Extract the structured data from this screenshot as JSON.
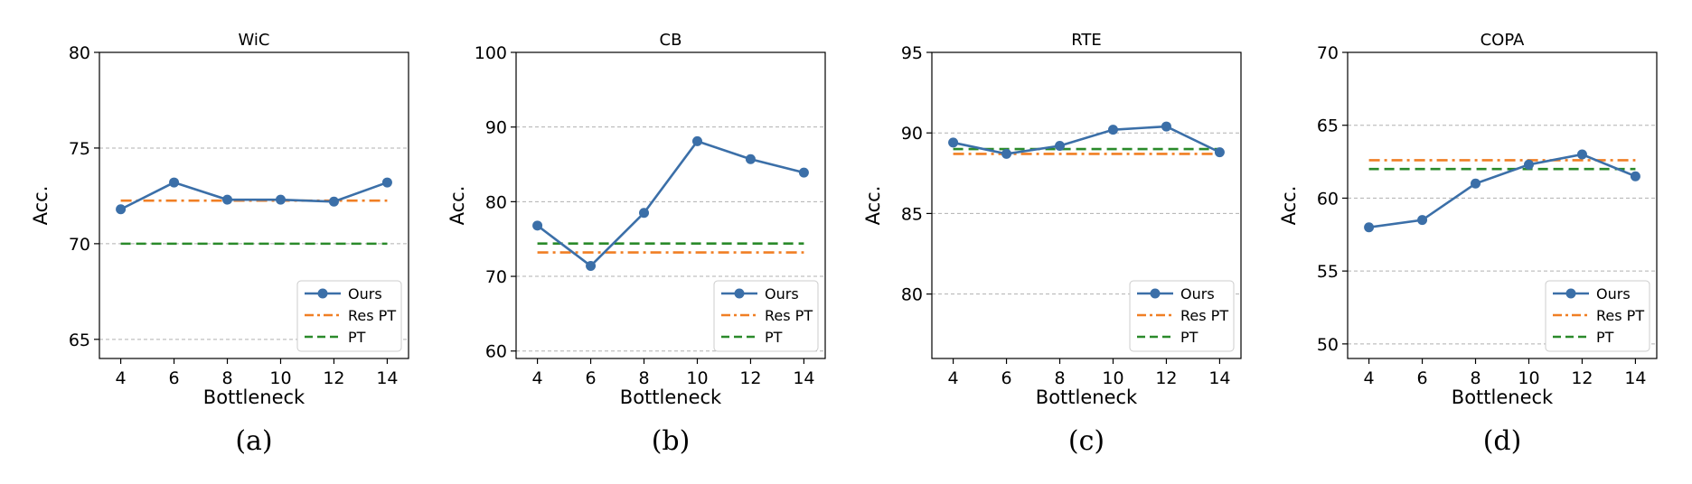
{
  "colors": {
    "ours": "#3b6fa8",
    "res_pt": "#f07f24",
    "pt": "#2a8a2a",
    "grid": "#b0b0b0",
    "axis": "#000000"
  },
  "chart_data": [
    {
      "type": "line",
      "title": "WiC",
      "xlabel": "Bottleneck",
      "ylabel": "Acc.",
      "caption": "(a)",
      "x": [
        4,
        6,
        8,
        10,
        12,
        14
      ],
      "xlim": [
        3.2,
        14.8
      ],
      "ylim": [
        64,
        80
      ],
      "yticks": [
        65,
        70,
        75,
        80
      ],
      "xticks": [
        4,
        6,
        8,
        10,
        12,
        14
      ],
      "grid": "y",
      "legend_position": "bottom-right",
      "series": [
        {
          "name": "Ours",
          "style": "solid-marker",
          "values": [
            71.8,
            73.2,
            72.3,
            72.3,
            72.2,
            73.2
          ]
        },
        {
          "name": "Res PT",
          "style": "dashdot",
          "values": [
            72.25,
            72.25,
            72.25,
            72.25,
            72.25,
            72.25
          ]
        },
        {
          "name": "PT",
          "style": "dashed",
          "values": [
            70.0,
            70.0,
            70.0,
            70.0,
            70.0,
            70.0
          ]
        }
      ]
    },
    {
      "type": "line",
      "title": "CB",
      "xlabel": "Bottleneck",
      "ylabel": "Acc.",
      "caption": "(b)",
      "x": [
        4,
        6,
        8,
        10,
        12,
        14
      ],
      "xlim": [
        3.2,
        14.8
      ],
      "ylim": [
        59,
        100
      ],
      "yticks": [
        60,
        70,
        80,
        90,
        100
      ],
      "xticks": [
        4,
        6,
        8,
        10,
        12,
        14
      ],
      "grid": "y",
      "legend_position": "bottom-right",
      "series": [
        {
          "name": "Ours",
          "style": "solid-marker",
          "values": [
            76.8,
            71.4,
            78.5,
            88.1,
            85.7,
            83.9
          ]
        },
        {
          "name": "Res PT",
          "style": "dashdot",
          "values": [
            73.2,
            73.2,
            73.2,
            73.2,
            73.2,
            73.2
          ]
        },
        {
          "name": "PT",
          "style": "dashed",
          "values": [
            74.4,
            74.4,
            74.4,
            74.4,
            74.4,
            74.4
          ]
        }
      ]
    },
    {
      "type": "line",
      "title": "RTE",
      "xlabel": "Bottleneck",
      "ylabel": "Acc.",
      "caption": "(c)",
      "x": [
        4,
        6,
        8,
        10,
        12,
        14
      ],
      "xlim": [
        3.2,
        14.8
      ],
      "ylim": [
        76,
        95
      ],
      "yticks": [
        80,
        85,
        90,
        95
      ],
      "xticks": [
        4,
        6,
        8,
        10,
        12,
        14
      ],
      "grid": "y",
      "legend_position": "bottom-right",
      "series": [
        {
          "name": "Ours",
          "style": "solid-marker",
          "values": [
            89.4,
            88.7,
            89.2,
            90.2,
            90.4,
            88.8
          ]
        },
        {
          "name": "Res PT",
          "style": "dashdot",
          "values": [
            88.7,
            88.7,
            88.7,
            88.7,
            88.7,
            88.7
          ]
        },
        {
          "name": "PT",
          "style": "dashed",
          "values": [
            89.0,
            89.0,
            89.0,
            89.0,
            89.0,
            89.0
          ]
        }
      ]
    },
    {
      "type": "line",
      "title": "COPA",
      "xlabel": "Bottleneck",
      "ylabel": "Acc.",
      "caption": "(d)",
      "x": [
        4,
        6,
        8,
        10,
        12,
        14
      ],
      "xlim": [
        3.2,
        14.8
      ],
      "ylim": [
        49,
        70
      ],
      "yticks": [
        50,
        55,
        60,
        65,
        70
      ],
      "xticks": [
        4,
        6,
        8,
        10,
        12,
        14
      ],
      "grid": "y",
      "legend_position": "bottom-right",
      "series": [
        {
          "name": "Ours",
          "style": "solid-marker",
          "values": [
            58.0,
            58.5,
            61.0,
            62.3,
            63.0,
            61.5
          ]
        },
        {
          "name": "Res PT",
          "style": "dashdot",
          "values": [
            62.6,
            62.6,
            62.6,
            62.6,
            62.6,
            62.6
          ]
        },
        {
          "name": "PT",
          "style": "dashed",
          "values": [
            62.0,
            62.0,
            62.0,
            62.0,
            62.0,
            62.0
          ]
        }
      ]
    }
  ]
}
